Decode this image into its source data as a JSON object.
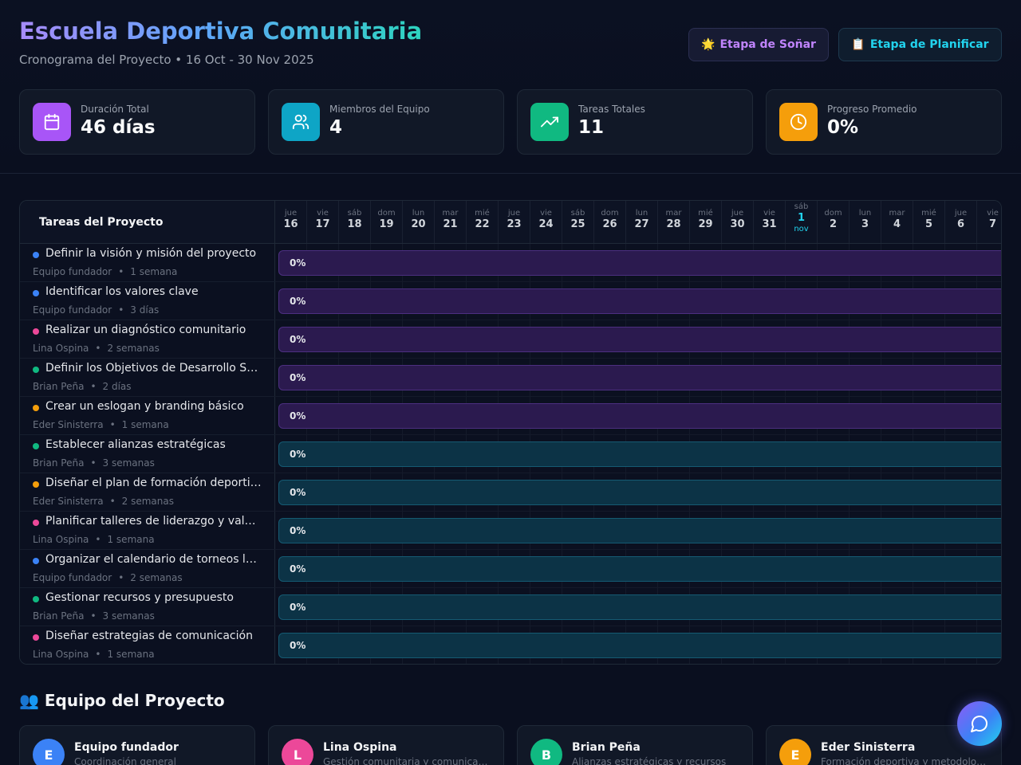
{
  "header": {
    "title": "Escuela Deportiva Comunitaria",
    "subtitle": "Cronograma del Proyecto • 16 Oct - 30 Nov 2025",
    "stages": [
      {
        "emoji": "🌟",
        "label": "Etapa de Soñar"
      },
      {
        "emoji": "📋",
        "label": "Etapa de Planificar"
      }
    ]
  },
  "stats": [
    {
      "label": "Duración Total",
      "value": "46 días",
      "icon": "calendar-icon",
      "color": "#a855f7"
    },
    {
      "label": "Miembros del Equipo",
      "value": "4",
      "icon": "users-icon",
      "color": "#0ea5c6"
    },
    {
      "label": "Tareas Totales",
      "value": "11",
      "icon": "trending-up-icon",
      "color": "#10b981"
    },
    {
      "label": "Progreso Promedio",
      "value": "0%",
      "icon": "clock-icon",
      "color": "#f59e0b"
    }
  ],
  "gantt": {
    "tasks_header": "Tareas del Proyecto",
    "days": [
      {
        "wd": "jue",
        "num": "16"
      },
      {
        "wd": "vie",
        "num": "17"
      },
      {
        "wd": "sáb",
        "num": "18"
      },
      {
        "wd": "dom",
        "num": "19"
      },
      {
        "wd": "lun",
        "num": "20"
      },
      {
        "wd": "mar",
        "num": "21"
      },
      {
        "wd": "mié",
        "num": "22"
      },
      {
        "wd": "jue",
        "num": "23"
      },
      {
        "wd": "vie",
        "num": "24"
      },
      {
        "wd": "sáb",
        "num": "25"
      },
      {
        "wd": "dom",
        "num": "26"
      },
      {
        "wd": "lun",
        "num": "27"
      },
      {
        "wd": "mar",
        "num": "28"
      },
      {
        "wd": "mié",
        "num": "29"
      },
      {
        "wd": "jue",
        "num": "30"
      },
      {
        "wd": "vie",
        "num": "31"
      },
      {
        "wd": "sáb",
        "num": "1",
        "month": "nov",
        "today": true
      },
      {
        "wd": "dom",
        "num": "2"
      },
      {
        "wd": "lun",
        "num": "3"
      },
      {
        "wd": "mar",
        "num": "4"
      },
      {
        "wd": "mié",
        "num": "5"
      },
      {
        "wd": "jue",
        "num": "6"
      },
      {
        "wd": "vie",
        "num": "7"
      }
    ],
    "tasks": [
      {
        "name": "Definir la visión y misión del proyecto",
        "owner": "Equipo fundador",
        "duration": "1 semana",
        "dot": "#3b82f6",
        "progress": "0%",
        "stage": "purple"
      },
      {
        "name": "Identificar los valores clave",
        "owner": "Equipo fundador",
        "duration": "3 días",
        "dot": "#3b82f6",
        "progress": "0%",
        "stage": "purple"
      },
      {
        "name": "Realizar un diagnóstico comunitario",
        "owner": "Lina Ospina",
        "duration": "2 semanas",
        "dot": "#ec4899",
        "progress": "0%",
        "stage": "purple"
      },
      {
        "name": "Definir los Objetivos de Desarrollo Sostenible",
        "owner": "Brian Peña",
        "duration": "2 días",
        "dot": "#10b981",
        "progress": "0%",
        "stage": "purple"
      },
      {
        "name": "Crear un eslogan y branding básico",
        "owner": "Eder Sinisterra",
        "duration": "1 semana",
        "dot": "#f59e0b",
        "progress": "0%",
        "stage": "purple"
      },
      {
        "name": "Establecer alianzas estratégicas",
        "owner": "Brian Peña",
        "duration": "3 semanas",
        "dot": "#10b981",
        "progress": "0%",
        "stage": "teal"
      },
      {
        "name": "Diseñar el plan de formación deportiva",
        "owner": "Eder Sinisterra",
        "duration": "2 semanas",
        "dot": "#f59e0b",
        "progress": "0%",
        "stage": "teal"
      },
      {
        "name": "Planificar talleres de liderazgo y valores",
        "owner": "Lina Ospina",
        "duration": "1 semana",
        "dot": "#ec4899",
        "progress": "0%",
        "stage": "teal"
      },
      {
        "name": "Organizar el calendario de torneos locales",
        "owner": "Equipo fundador",
        "duration": "2 semanas",
        "dot": "#3b82f6",
        "progress": "0%",
        "stage": "teal"
      },
      {
        "name": "Gestionar recursos y presupuesto",
        "owner": "Brian Peña",
        "duration": "3 semanas",
        "dot": "#10b981",
        "progress": "0%",
        "stage": "teal"
      },
      {
        "name": "Diseñar estrategias de comunicación",
        "owner": "Lina Ospina",
        "duration": "1 semana",
        "dot": "#ec4899",
        "progress": "0%",
        "stage": "teal"
      }
    ]
  },
  "team": {
    "title": "👥 Equipo del Proyecto",
    "members": [
      {
        "initial": "E",
        "name": "Equipo fundador",
        "role": "Coordinación general",
        "color": "#3b82f6"
      },
      {
        "initial": "L",
        "name": "Lina Ospina",
        "role": "Gestión comunitaria y comunicación",
        "color": "#ec4899"
      },
      {
        "initial": "B",
        "name": "Brian Peña",
        "role": "Alianzas estratégicas y recursos",
        "color": "#10b981"
      },
      {
        "initial": "E",
        "name": "Eder Sinisterra",
        "role": "Formación deportiva y metodología",
        "color": "#f59e0b"
      }
    ]
  },
  "chat": {
    "icon": "chat-bubble-icon"
  }
}
